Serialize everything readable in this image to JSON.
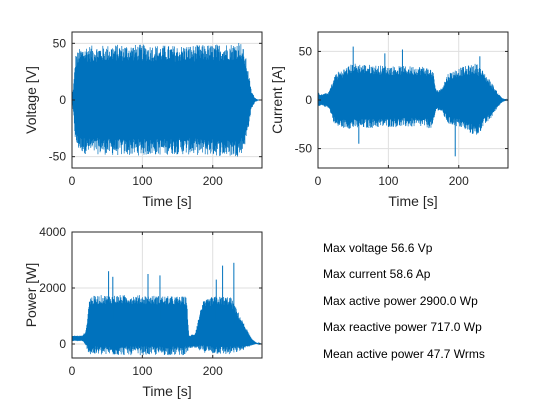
{
  "colors": {
    "signal": "#0072BD",
    "axis": "#262626",
    "grid": "#dfdfdf"
  },
  "chart_data": [
    {
      "type": "line",
      "id": "voltage",
      "xlabel": "Time [s]",
      "ylabel": "Voltage [V]",
      "xlim": [
        0,
        270
      ],
      "ylim": [
        -60,
        60
      ],
      "xticks": [
        0,
        100,
        200
      ],
      "yticks": [
        -50,
        0,
        50
      ],
      "envelope": {
        "x": [
          0,
          3,
          5,
          10,
          20,
          40,
          60,
          100,
          150,
          200,
          220,
          230,
          238,
          243,
          248,
          255,
          260,
          265,
          270
        ],
        "max": [
          0,
          20,
          40,
          45,
          48,
          48,
          49,
          49,
          48,
          49,
          50,
          50,
          53,
          47,
          35,
          8,
          2,
          0,
          0
        ],
        "min": [
          0,
          -20,
          -40,
          -45,
          -48,
          -48,
          -49,
          -49,
          -48,
          -49,
          -50,
          -50,
          -50,
          -45,
          -35,
          -8,
          -2,
          0,
          0
        ]
      }
    },
    {
      "type": "line",
      "id": "current",
      "xlabel": "Time [s]",
      "ylabel": "Current [A]",
      "xlim": [
        0,
        270
      ],
      "ylim": [
        -70,
        70
      ],
      "xticks": [
        0,
        100,
        200
      ],
      "yticks": [
        -50,
        0,
        50
      ],
      "envelope": {
        "x": [
          0,
          5,
          15,
          20,
          25,
          50,
          100,
          150,
          163,
          168,
          175,
          185,
          200,
          225,
          235,
          245,
          255,
          262,
          270
        ],
        "max": [
          8,
          6,
          8,
          18,
          28,
          38,
          35,
          35,
          32,
          10,
          12,
          28,
          33,
          38,
          30,
          20,
          8,
          2,
          0
        ],
        "min": [
          -8,
          -6,
          -8,
          -18,
          -28,
          -30,
          -28,
          -28,
          -30,
          -10,
          -12,
          -25,
          -28,
          -38,
          -28,
          -20,
          -8,
          -2,
          0
        ]
      },
      "spikes": [
        [
          50,
          55
        ],
        [
          58,
          -45
        ],
        [
          120,
          52
        ],
        [
          95,
          48
        ],
        [
          195,
          -58
        ],
        [
          230,
          45
        ]
      ]
    },
    {
      "type": "line",
      "id": "power",
      "xlabel": "Time [s]",
      "ylabel": "Power [W]",
      "xlim": [
        0,
        270
      ],
      "ylim": [
        -500,
        4000
      ],
      "xticks": [
        0,
        100,
        200
      ],
      "yticks": [
        0,
        2000,
        4000
      ],
      "envelope": {
        "x": [
          0,
          15,
          20,
          25,
          40,
          100,
          150,
          163,
          166,
          175,
          185,
          200,
          225,
          235,
          245,
          255,
          262,
          270
        ],
        "max": [
          300,
          300,
          500,
          1700,
          1750,
          1750,
          1700,
          1700,
          300,
          400,
          1500,
          1700,
          1700,
          1200,
          700,
          200,
          50,
          0
        ],
        "min": [
          100,
          100,
          -100,
          -400,
          -400,
          -400,
          -400,
          -400,
          -150,
          -150,
          -300,
          -350,
          -400,
          -300,
          -200,
          -50,
          0,
          0
        ]
      },
      "spikes": [
        [
          52,
          2600
        ],
        [
          58,
          2400
        ],
        [
          108,
          2500
        ],
        [
          125,
          2450
        ],
        [
          205,
          2300
        ],
        [
          214,
          2800
        ],
        [
          230,
          2900
        ]
      ]
    }
  ],
  "info": {
    "max_voltage": "Max voltage 56.6 Vp",
    "max_current": "Max current 58.6 Ap",
    "max_active_power": "Max active power 2900.0 Wp",
    "max_reactive_power": "Max reactive power 717.0 Wp",
    "mean_active_power": "Mean active power 47.7 Wrms"
  }
}
